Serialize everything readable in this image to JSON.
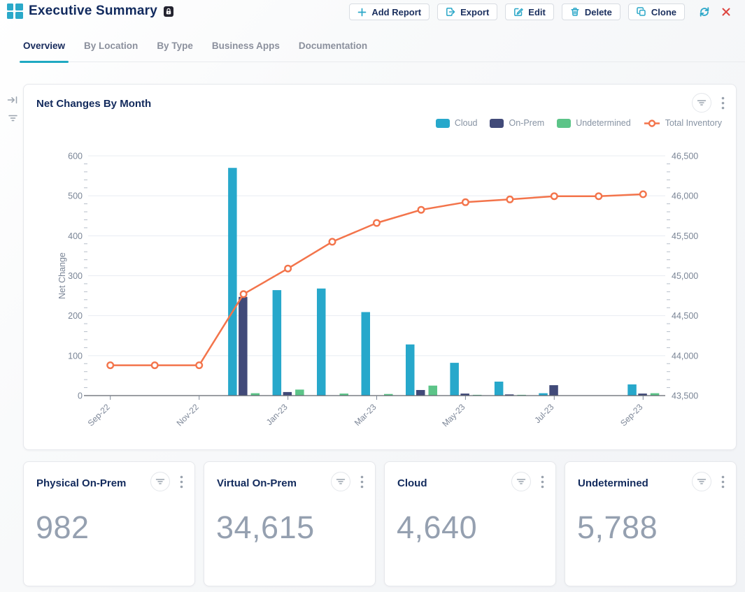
{
  "header": {
    "title": "Executive Summary",
    "actions": [
      {
        "label": "Add Report"
      },
      {
        "label": "Export"
      },
      {
        "label": "Edit"
      },
      {
        "label": "Delete"
      },
      {
        "label": "Clone"
      }
    ]
  },
  "tabs": {
    "active": "Overview",
    "items": [
      "Overview",
      "By Location",
      "By Type",
      "Business Apps",
      "Documentation"
    ]
  },
  "chart_card": {
    "title": "Net Changes By Month"
  },
  "chart_data": {
    "type": "combo-bar-line",
    "categories": [
      "Sep-22",
      "Oct-22",
      "Nov-22",
      "Dec-22",
      "Jan-23",
      "Feb-23",
      "Mar-23",
      "Apr-23",
      "May-23",
      "Jun-23",
      "Jul-23",
      "Aug-23",
      "Sep-23"
    ],
    "x_tick_labels": [
      "Sep-22",
      "Nov-22",
      "Jan-23",
      "Mar-23",
      "May-23",
      "Jul-23",
      "Sep-23"
    ],
    "series": [
      {
        "name": "Cloud",
        "type": "bar",
        "axis": "left",
        "color": "#27a8cb",
        "values": [
          0,
          0,
          0,
          570,
          264,
          268,
          209,
          128,
          82,
          35,
          6,
          0,
          28
        ]
      },
      {
        "name": "On-Prem",
        "type": "bar",
        "axis": "left",
        "color": "#414a79",
        "values": [
          0,
          0,
          0,
          247,
          9,
          0,
          0,
          14,
          5,
          3,
          26,
          0,
          5
        ]
      },
      {
        "name": "Undetermined",
        "type": "bar",
        "axis": "left",
        "color": "#5cc488",
        "values": [
          0,
          0,
          0,
          6,
          15,
          5,
          4,
          25,
          2,
          2,
          0,
          0,
          6
        ]
      },
      {
        "name": "Total Inventory",
        "type": "line",
        "axis": "right",
        "color": "#f3744b",
        "values": [
          43880,
          43880,
          43880,
          44770,
          45090,
          45425,
          45660,
          45825,
          45920,
          45955,
          45995,
          45995,
          46020
        ]
      }
    ],
    "left_axis": {
      "title": "Net Change",
      "min": 0,
      "max": 600,
      "step": 100
    },
    "right_axis": {
      "min": 43500,
      "max": 46500,
      "step": 500
    },
    "grid": true,
    "legend_position": "top-right"
  },
  "kpis": [
    {
      "title": "Physical On-Prem",
      "value": "982"
    },
    {
      "title": "Virtual On-Prem",
      "value": "34,615"
    },
    {
      "title": "Cloud",
      "value": "4,640"
    },
    {
      "title": "Undetermined",
      "value": "5,788"
    }
  ],
  "colors": {
    "accent_teal": "#2aa9c9",
    "navy_text": "#132a5c",
    "close_red": "#dd4540",
    "kpi_value": "#95a0b0",
    "gridline": "#e8ecf2"
  }
}
